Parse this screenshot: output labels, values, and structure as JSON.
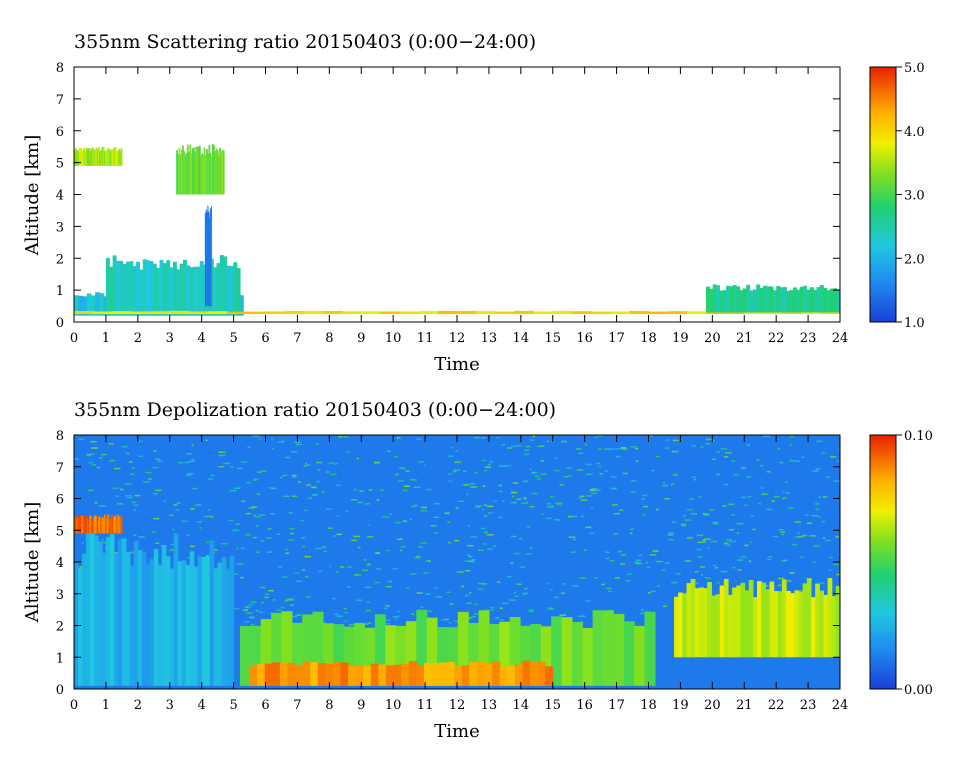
{
  "chart_data": [
    {
      "type": "heatmap",
      "title": "355nm Scattering ratio  20150403 (0:00−24:00)",
      "xlabel": "Time",
      "ylabel": "Altitude [km]",
      "xlim": [
        0,
        24
      ],
      "ylim": [
        0,
        8
      ],
      "x_ticks": [
        "0",
        "1",
        "2",
        "3",
        "4",
        "5",
        "6",
        "7",
        "8",
        "9",
        "10",
        "11",
        "12",
        "13",
        "14",
        "15",
        "16",
        "17",
        "18",
        "19",
        "20",
        "21",
        "22",
        "23",
        "24"
      ],
      "y_ticks": [
        "0",
        "1",
        "2",
        "3",
        "4",
        "5",
        "6",
        "7",
        "8"
      ],
      "colorbar": {
        "min": 1.0,
        "max": 5.0,
        "tick_labels": [
          "1.0",
          "2.0",
          "3.0",
          "4.0",
          "5.0"
        ],
        "tick_values": [
          1.0,
          2.0,
          3.0,
          4.0,
          5.0
        ]
      },
      "features": [
        {
          "label": "boundary layer",
          "t_start": 0,
          "t_end": 5.3,
          "alt_bottom": 0.2,
          "alt_top": 1.0,
          "value": 2.2
        },
        {
          "label": "plumes",
          "t_start": 1.0,
          "t_end": 5.2,
          "alt_bottom": 0.2,
          "alt_top": 2.1,
          "value": 2.4
        },
        {
          "label": "thin layer",
          "t_start": 0,
          "t_end": 24,
          "alt_bottom": 0.25,
          "alt_top": 0.35,
          "value": 4.0
        },
        {
          "label": "cloud",
          "t_start": 0.0,
          "t_end": 1.5,
          "alt_bottom": 4.9,
          "alt_top": 5.5,
          "value": 3.5
        },
        {
          "label": "cloud",
          "t_start": 3.2,
          "t_end": 4.7,
          "alt_bottom": 4.0,
          "alt_top": 5.6,
          "value": 3.2
        },
        {
          "label": "spike",
          "t_start": 4.1,
          "t_end": 4.3,
          "alt_bottom": 0.5,
          "alt_top": 3.7,
          "value": 1.5
        },
        {
          "label": "evening layer",
          "t_start": 19.8,
          "t_end": 24,
          "alt_bottom": 0.3,
          "alt_top": 1.2,
          "value": 2.6
        }
      ]
    },
    {
      "type": "heatmap",
      "title": "355nm Depolization ratio  20150403 (0:00−24:00)",
      "xlabel": "Time",
      "ylabel": "Altitude [km]",
      "xlim": [
        0,
        24
      ],
      "ylim": [
        0,
        8
      ],
      "x_ticks": [
        "0",
        "1",
        "2",
        "3",
        "4",
        "5",
        "6",
        "7",
        "8",
        "9",
        "10",
        "11",
        "12",
        "13",
        "14",
        "15",
        "16",
        "17",
        "18",
        "19",
        "20",
        "21",
        "22",
        "23",
        "24"
      ],
      "y_ticks": [
        "0",
        "1",
        "2",
        "3",
        "4",
        "5",
        "6",
        "7",
        "8"
      ],
      "colorbar": {
        "min": 0.0,
        "max": 0.1,
        "tick_labels": [
          "0.00",
          "0.10"
        ],
        "tick_values": [
          0.0,
          0.1
        ]
      },
      "features": [
        {
          "label": "low depol layer",
          "t_start": 0,
          "t_end": 5.0,
          "alt_bottom": 0.1,
          "alt_top": 5.0,
          "value": 0.025
        },
        {
          "label": "cloud",
          "t_start": 0.0,
          "t_end": 1.5,
          "alt_bottom": 4.9,
          "alt_top": 5.5,
          "value": 0.09
        },
        {
          "label": "dust",
          "t_start": 5.2,
          "t_end": 18.2,
          "alt_bottom": 0.1,
          "alt_top": 2.5,
          "value": 0.055
        },
        {
          "label": "dust core",
          "t_start": 5.5,
          "t_end": 15.0,
          "alt_bottom": 0.1,
          "alt_top": 0.9,
          "value": 0.085
        },
        {
          "label": "dust layer",
          "t_start": 18.8,
          "t_end": 24,
          "alt_bottom": 1.0,
          "alt_top": 3.5,
          "value": 0.065
        }
      ]
    }
  ]
}
